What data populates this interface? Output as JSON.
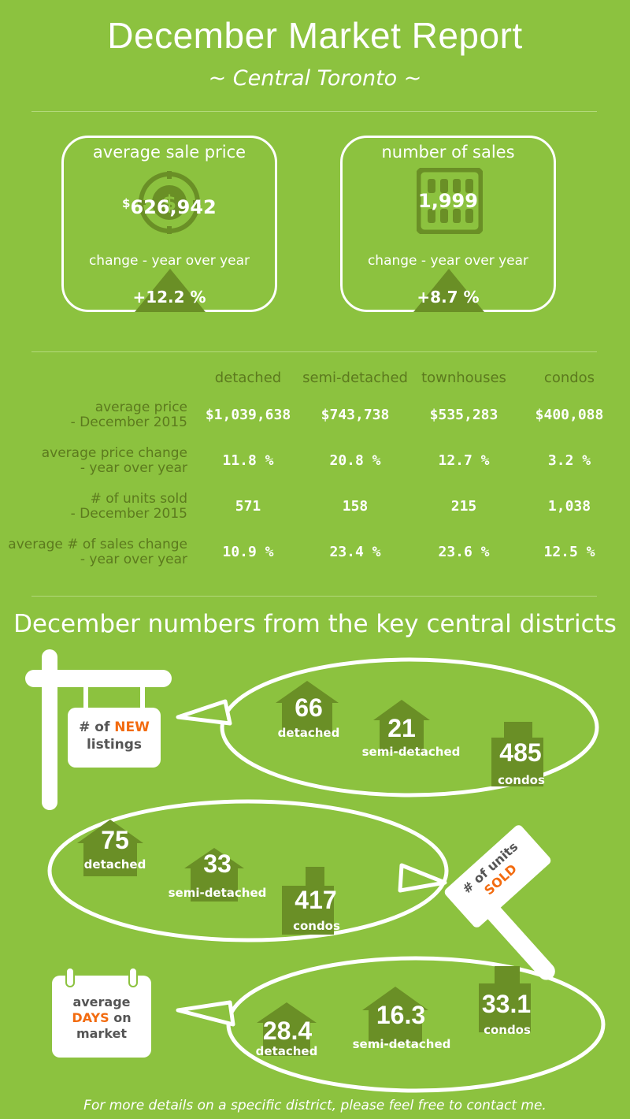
{
  "header": {
    "title": "December Market Report",
    "subtitle": "~ Central Toronto ~"
  },
  "summary": {
    "price": {
      "title": "average sale price",
      "currency": "$",
      "value": "626,942",
      "change_label": "change - year over year",
      "change": "+12.2 %",
      "icon": "dollar-coin-icon"
    },
    "sales": {
      "title": "number of sales",
      "value": "1,999",
      "change_label": "change - year over year",
      "change": "+8.7 %",
      "icon": "abacus-icon"
    }
  },
  "table": {
    "columns": [
      "detached",
      "semi-detached",
      "townhouses",
      "condos"
    ],
    "rows": [
      {
        "label1": "average price",
        "label2": "- December 2015",
        "values": [
          "$1,039,638",
          "$743,738",
          "$535,283",
          "$400,088"
        ]
      },
      {
        "label1": "average price change",
        "label2": "- year over year",
        "values": [
          "11.8 %",
          "20.8 %",
          "12.7 %",
          "3.2 %"
        ]
      },
      {
        "label1": "# of units sold",
        "label2": "- December 2015",
        "values": [
          "571",
          "158",
          "215",
          "1,038"
        ]
      },
      {
        "label1": "average # of sales change",
        "label2": "- year over year",
        "values": [
          "10.9 %",
          "23.4 %",
          "23.6 %",
          "12.5 %"
        ]
      }
    ]
  },
  "districts": {
    "title": "December numbers from the key central districts",
    "new_listings": {
      "sign_line1_pre": "# of ",
      "sign_line1_accent": "NEW",
      "sign_line2": "listings",
      "detached": "66",
      "detached_label": "detached",
      "semi": "21",
      "semi_label": "semi-detached",
      "condos": "485",
      "condos_label": "condos"
    },
    "units_sold": {
      "sign_line1": "# of units",
      "sign_accent": "SOLD",
      "detached": "75",
      "detached_label": "detached",
      "semi": "33",
      "semi_label": "semi-detached",
      "condos": "417",
      "condos_label": "condos"
    },
    "days_on_market": {
      "sign_line1": "average",
      "sign_accent": "DAYS",
      "sign_line2_rest": " on",
      "sign_line3": "market",
      "detached": "28.4",
      "detached_label": "detached",
      "semi": "16.3",
      "semi_label": "semi-detached",
      "condos": "33.1",
      "condos_label": "condos"
    }
  },
  "footer": "For more details on a specific district, please feel free to contact me.",
  "colors": {
    "background": "#8cc23f",
    "dark_green": "#6a8f26",
    "text_dark": "#5c7a1e",
    "accent": "#f26b0f"
  }
}
